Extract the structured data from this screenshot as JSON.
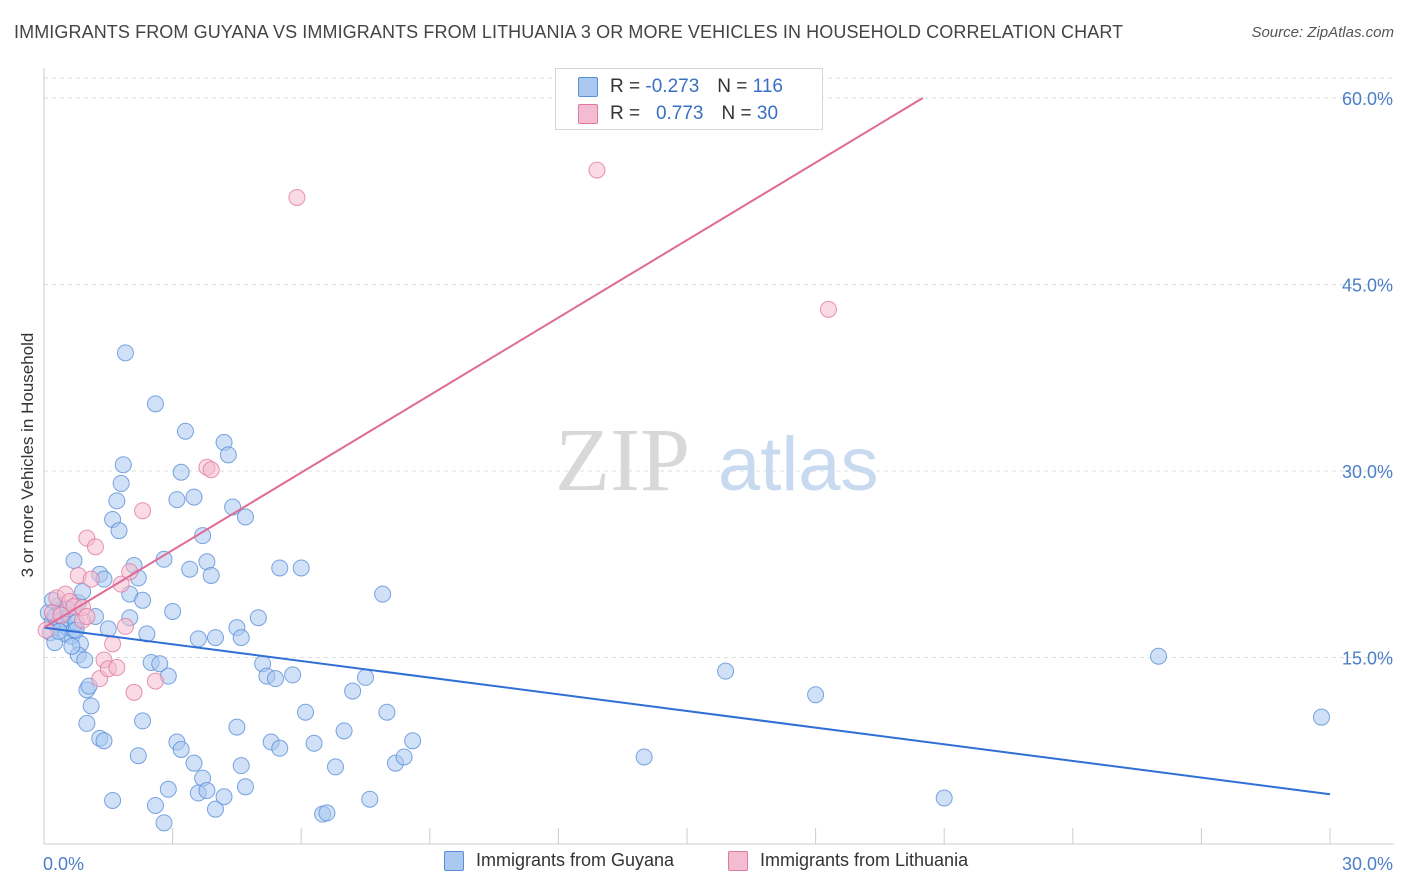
{
  "title": "IMMIGRANTS FROM GUYANA VS IMMIGRANTS FROM LITHUANIA 3 OR MORE VEHICLES IN HOUSEHOLD CORRELATION CHART",
  "source": "Source: ZipAtlas.com",
  "watermark": {
    "zip": "ZIP",
    "atlas": "atlas"
  },
  "colors": {
    "guyana": "#5b8fd8",
    "guyana_fill": "#aac8f0",
    "lithuania": "#e07aa0",
    "lithuania_fill": "#f4bcd0",
    "axis_text": "#4a7fc8",
    "grid": "#dddddd"
  },
  "legend": {
    "rows": [
      {
        "r_label": "R =",
        "r_value": "-0.273",
        "n_label": "N =",
        "n_value": "116"
      },
      {
        "r_label": "R =",
        "r_value": "0.773",
        "n_label": "N =",
        "n_value": "30"
      }
    ]
  },
  "chart_data": {
    "type": "scatter",
    "title": "IMMIGRANTS FROM GUYANA VS IMMIGRANTS FROM LITHUANIA 3 OR MORE VEHICLES IN HOUSEHOLD CORRELATION CHART",
    "xlabel": "",
    "ylabel": "3 or more Vehicles in Household",
    "xlim": [
      0,
      30
    ],
    "ylim": [
      0,
      60
    ],
    "x_ticks": [
      0,
      30
    ],
    "x_tick_labels": [
      "0.0%",
      "30.0%"
    ],
    "y_ticks": [
      15,
      30,
      45,
      60
    ],
    "y_tick_labels": [
      "15.0%",
      "30.0%",
      "45.0%",
      "60.0%"
    ],
    "grid": true,
    "legend_position": "top-center",
    "series": [
      {
        "name": "Immigrants from Guyana",
        "color": "#5b8fd8",
        "regression": {
          "x": [
            0,
            30
          ],
          "y": [
            17.4,
            4.0
          ]
        },
        "points": [
          [
            0.1,
            18.6
          ],
          [
            0.2,
            17.9
          ],
          [
            0.25,
            18.3
          ],
          [
            0.3,
            17.6
          ],
          [
            0.35,
            19.2
          ],
          [
            0.4,
            18.8
          ],
          [
            0.45,
            18.1
          ],
          [
            0.5,
            16.9
          ],
          [
            0.55,
            17.4
          ],
          [
            0.6,
            18.4
          ],
          [
            0.65,
            16.7
          ],
          [
            0.7,
            17.2
          ],
          [
            0.75,
            17.8
          ],
          [
            0.8,
            19.4
          ],
          [
            0.85,
            16.1
          ],
          [
            0.9,
            20.3
          ],
          [
            0.7,
            22.8
          ],
          [
            0.8,
            15.2
          ],
          [
            0.95,
            14.8
          ],
          [
            1.0,
            12.4
          ],
          [
            1.05,
            12.7
          ],
          [
            1.1,
            11.1
          ],
          [
            1.2,
            18.3
          ],
          [
            1.3,
            21.7
          ],
          [
            1.4,
            21.3
          ],
          [
            1.5,
            17.3
          ],
          [
            1.6,
            26.1
          ],
          [
            1.7,
            27.6
          ],
          [
            1.75,
            25.2
          ],
          [
            1.8,
            29.0
          ],
          [
            1.85,
            30.5
          ],
          [
            1.9,
            39.5
          ],
          [
            2.0,
            20.1
          ],
          [
            2.0,
            18.2
          ],
          [
            2.1,
            22.4
          ],
          [
            2.2,
            21.4
          ],
          [
            2.3,
            19.6
          ],
          [
            2.4,
            16.9
          ],
          [
            2.5,
            14.6
          ],
          [
            2.6,
            35.4
          ],
          [
            2.7,
            14.5
          ],
          [
            2.8,
            22.9
          ],
          [
            2.9,
            13.5
          ],
          [
            3.0,
            18.7
          ],
          [
            3.1,
            27.7
          ],
          [
            3.2,
            29.9
          ],
          [
            3.3,
            33.2
          ],
          [
            3.4,
            22.1
          ],
          [
            3.5,
            27.9
          ],
          [
            3.6,
            16.5
          ],
          [
            3.7,
            24.8
          ],
          [
            3.8,
            22.7
          ],
          [
            3.9,
            21.6
          ],
          [
            4.0,
            16.6
          ],
          [
            4.2,
            32.3
          ],
          [
            4.3,
            31.3
          ],
          [
            4.4,
            27.1
          ],
          [
            4.5,
            17.4
          ],
          [
            4.6,
            16.6
          ],
          [
            4.7,
            26.3
          ],
          [
            5.0,
            18.2
          ],
          [
            5.1,
            14.5
          ],
          [
            5.2,
            13.5
          ],
          [
            5.4,
            13.3
          ],
          [
            5.5,
            22.2
          ],
          [
            5.8,
            13.6
          ],
          [
            6.0,
            22.2
          ],
          [
            6.1,
            10.6
          ],
          [
            6.3,
            8.1
          ],
          [
            6.5,
            2.4
          ],
          [
            6.6,
            2.5
          ],
          [
            6.8,
            6.2
          ],
          [
            7.0,
            9.1
          ],
          [
            7.2,
            12.3
          ],
          [
            7.5,
            13.4
          ],
          [
            7.6,
            3.6
          ],
          [
            7.9,
            20.1
          ],
          [
            8.0,
            10.6
          ],
          [
            8.2,
            6.5
          ],
          [
            8.4,
            7.0
          ],
          [
            8.6,
            8.3
          ],
          [
            1.0,
            9.7
          ],
          [
            1.3,
            8.5
          ],
          [
            1.4,
            8.3
          ],
          [
            1.6,
            3.5
          ],
          [
            2.2,
            7.1
          ],
          [
            2.3,
            9.9
          ],
          [
            2.6,
            3.1
          ],
          [
            2.8,
            1.7
          ],
          [
            2.9,
            4.4
          ],
          [
            3.1,
            8.2
          ],
          [
            3.2,
            7.6
          ],
          [
            3.5,
            6.5
          ],
          [
            3.6,
            4.1
          ],
          [
            3.7,
            5.3
          ],
          [
            3.8,
            4.3
          ],
          [
            4.0,
            2.8
          ],
          [
            4.2,
            3.8
          ],
          [
            4.5,
            9.4
          ],
          [
            4.6,
            6.3
          ],
          [
            4.7,
            4.6
          ],
          [
            5.3,
            8.2
          ],
          [
            5.5,
            7.7
          ],
          [
            14.0,
            7.0
          ],
          [
            15.9,
            13.9
          ],
          [
            18.0,
            12.0
          ],
          [
            21.0,
            3.7
          ],
          [
            26.0,
            15.1
          ],
          [
            29.8,
            10.2
          ],
          [
            0.15,
            17.0
          ],
          [
            0.25,
            16.2
          ],
          [
            0.35,
            17.1
          ],
          [
            0.55,
            18.9
          ],
          [
            0.65,
            15.9
          ],
          [
            0.75,
            17.2
          ],
          [
            0.2,
            19.6
          ]
        ]
      },
      {
        "name": "Immigrants from Lithuania",
        "color": "#e07aa0",
        "regression": {
          "x": [
            0,
            20.5
          ],
          "y": [
            17.4,
            60.0
          ]
        },
        "points": [
          [
            0.05,
            17.2
          ],
          [
            0.2,
            18.6
          ],
          [
            0.3,
            19.8
          ],
          [
            0.4,
            18.4
          ],
          [
            0.5,
            20.1
          ],
          [
            0.6,
            19.5
          ],
          [
            0.7,
            19.1
          ],
          [
            0.8,
            21.6
          ],
          [
            0.9,
            18.0
          ],
          [
            1.0,
            24.6
          ],
          [
            1.1,
            21.3
          ],
          [
            1.2,
            23.9
          ],
          [
            1.3,
            13.3
          ],
          [
            1.4,
            14.8
          ],
          [
            1.5,
            14.1
          ],
          [
            1.6,
            16.1
          ],
          [
            1.7,
            14.2
          ],
          [
            1.8,
            20.9
          ],
          [
            1.9,
            17.5
          ],
          [
            2.0,
            21.9
          ],
          [
            2.1,
            12.2
          ],
          [
            2.3,
            26.8
          ],
          [
            2.6,
            13.1
          ],
          [
            3.8,
            30.3
          ],
          [
            3.9,
            30.1
          ],
          [
            5.9,
            52.0
          ],
          [
            12.9,
            54.2
          ],
          [
            18.3,
            43.0
          ],
          [
            0.9,
            19.0
          ],
          [
            1.0,
            18.3
          ]
        ]
      }
    ]
  },
  "bottom_legend": [
    "Immigrants from Guyana",
    "Immigrants from Lithuania"
  ]
}
